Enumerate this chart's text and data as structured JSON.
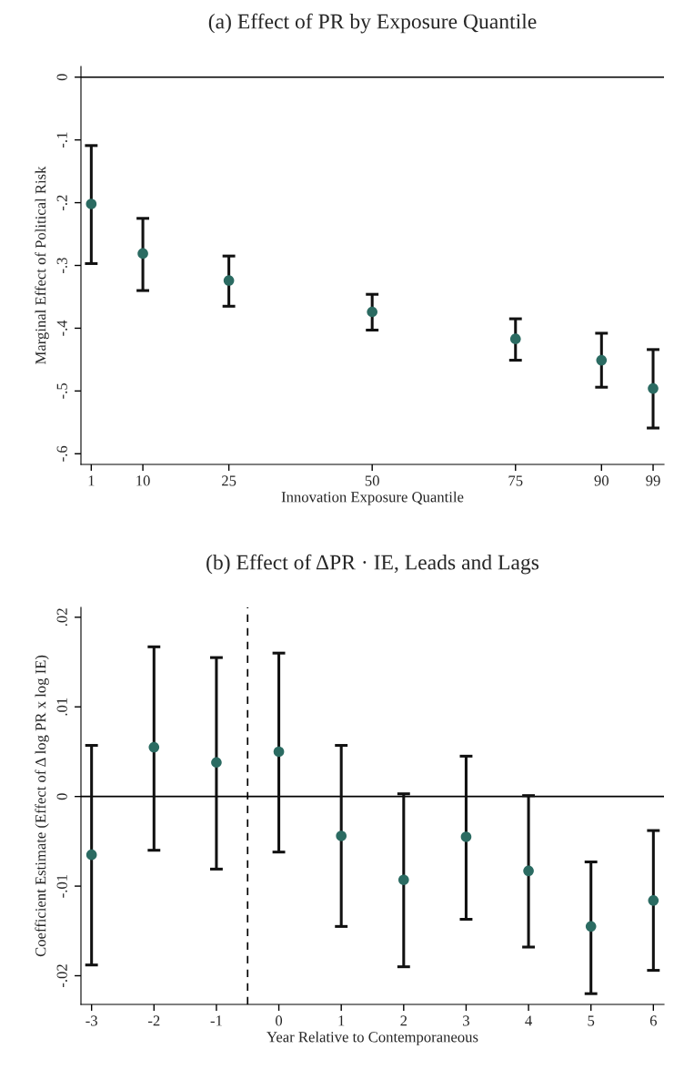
{
  "chart_data": [
    {
      "type": "scatter",
      "title": "(a) Effect of PR by Exposure Quantile",
      "xlabel": "Innovation Exposure Quantile",
      "ylabel": "Marginal Effect of Political Risk",
      "x": [
        1,
        10,
        25,
        50,
        75,
        90,
        99
      ],
      "series": [
        {
          "color": "#2b6b62",
          "values": [
            -0.202,
            -0.281,
            -0.324,
            -0.374,
            -0.417,
            -0.451,
            -0.496
          ],
          "errors": [
            [
              -0.297,
              -0.109
            ],
            [
              -0.34,
              -0.225
            ],
            [
              -0.365,
              -0.285
            ],
            [
              -0.403,
              -0.346
            ],
            [
              -0.451,
              -0.385
            ],
            [
              -0.494,
              -0.408
            ],
            [
              -0.559,
              -0.434
            ]
          ]
        }
      ],
      "xlim": [
        -0.8,
        100.9
      ],
      "xticks": [
        1,
        10,
        25,
        50,
        75,
        90,
        99
      ],
      "ylim": [
        -0.617,
        0.017
      ],
      "yticks": [
        {
          "value": 0,
          "label": "0"
        },
        {
          "value": -0.1,
          "label": "-.1"
        },
        {
          "value": -0.2,
          "label": "-.2"
        },
        {
          "value": -0.3,
          "label": "-.3"
        },
        {
          "value": -0.4,
          "label": "-.4"
        },
        {
          "value": -0.5,
          "label": "-.5"
        },
        {
          "value": -0.6,
          "label": "-.6"
        }
      ],
      "ref_lines": [
        {
          "axis": "y",
          "value": 0,
          "color": "#000000",
          "line_style": "solid"
        }
      ],
      "marker": "circle",
      "grid": false,
      "legend": false
    },
    {
      "type": "scatter",
      "title": "(b) Effect of ΔPR · IE, Leads and Lags",
      "xlabel": "Year Relative to Contemporaneous",
      "ylabel": "Coefficient Estimate (Effect of Δ log PR x log IE)",
      "x": [
        -3,
        -2,
        -1,
        0,
        1,
        2,
        3,
        4,
        5,
        6
      ],
      "series": [
        {
          "color": "#2b6b62",
          "values": [
            -0.0065,
            0.0055,
            0.0038,
            0.005,
            -0.0044,
            -0.0093,
            -0.0045,
            -0.0083,
            -0.0145,
            -0.0116
          ],
          "errors": [
            [
              -0.0188,
              0.0057
            ],
            [
              -0.006,
              0.0167
            ],
            [
              -0.0081,
              0.0155
            ],
            [
              -0.0062,
              0.016
            ],
            [
              -0.0145,
              0.0057
            ],
            [
              -0.019,
              0.0003
            ],
            [
              -0.0137,
              0.0045
            ],
            [
              -0.0168,
              0.0001
            ],
            [
              -0.022,
              -0.0073
            ],
            [
              -0.0194,
              -0.0038
            ]
          ]
        }
      ],
      "xlim": [
        -3.17,
        6.17
      ],
      "xticks": [
        -3,
        -2,
        -1,
        0,
        1,
        2,
        3,
        4,
        5,
        6
      ],
      "ylim": [
        -0.0232,
        0.0211
      ],
      "yticks": [
        {
          "value": 0.02,
          "label": ".02"
        },
        {
          "value": 0.01,
          "label": ".01"
        },
        {
          "value": 0,
          "label": "0"
        },
        {
          "value": -0.01,
          "label": "-.01"
        },
        {
          "value": -0.02,
          "label": "-.02"
        }
      ],
      "ref_lines": [
        {
          "axis": "y",
          "value": 0,
          "color": "#000000",
          "line_style": "solid"
        },
        {
          "axis": "x",
          "value": -0.5,
          "color": "#000000",
          "line_style": "dashed"
        }
      ],
      "marker": "circle",
      "grid": false,
      "legend": false
    }
  ]
}
